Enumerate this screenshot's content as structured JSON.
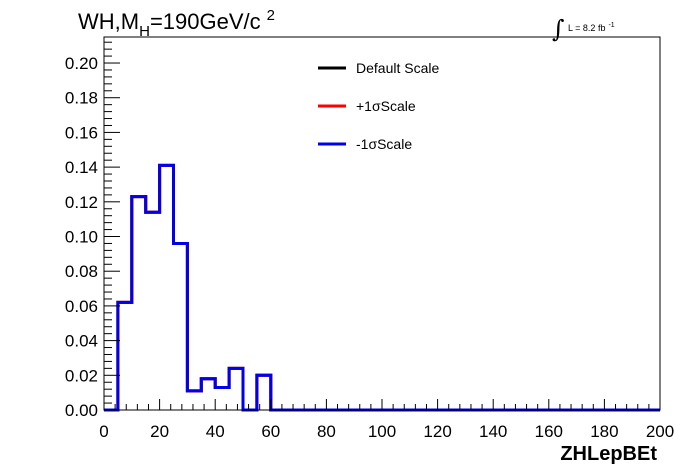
{
  "chart_data": {
    "type": "line",
    "style": "step-histogram",
    "title": {
      "prefix": "WH,M",
      "subscript": "H",
      "value": "=190GeV/c",
      "superscript": "2"
    },
    "luminosity": {
      "label": "L = 8.2 fb",
      "superscript": "-1"
    },
    "xlabel": "ZHLepBEt",
    "ylabel": "",
    "xlim": [
      0,
      200
    ],
    "ylim": [
      0,
      0.215
    ],
    "xticks": [
      0,
      20,
      40,
      60,
      80,
      100,
      120,
      140,
      160,
      180,
      200
    ],
    "yticks": [
      0.0,
      0.02,
      0.04,
      0.06,
      0.08,
      0.1,
      0.12,
      0.14,
      0.16,
      0.18,
      0.2
    ],
    "grid": false,
    "legend_position": "top-center",
    "bin_width": 5,
    "bin_edges": [
      0,
      5,
      10,
      15,
      20,
      25,
      30,
      35,
      40,
      45,
      50,
      55,
      60,
      65,
      70,
      75,
      80,
      85,
      90,
      95,
      100,
      105,
      110,
      115,
      120,
      125,
      130,
      135,
      140,
      145,
      150,
      155,
      160,
      165,
      170,
      175,
      180,
      185,
      190,
      195,
      200
    ],
    "series": [
      {
        "name": "Default Scale",
        "color": "#000000",
        "values": [
          0,
          0.062,
          0.123,
          0.114,
          0.141,
          0.096,
          0.011,
          0.018,
          0.013,
          0.024,
          0,
          0.02,
          0,
          0,
          0,
          0,
          0,
          0,
          0,
          0,
          0,
          0,
          0,
          0,
          0,
          0,
          0,
          0,
          0,
          0,
          0,
          0,
          0,
          0,
          0,
          0,
          0,
          0,
          0,
          0
        ]
      },
      {
        "name": "+1σScale",
        "color": "#ff0000",
        "values": [
          0,
          0.062,
          0.123,
          0.114,
          0.141,
          0.096,
          0.011,
          0.018,
          0.013,
          0.024,
          0,
          0.02,
          0,
          0,
          0,
          0,
          0,
          0,
          0,
          0,
          0,
          0,
          0,
          0,
          0,
          0,
          0,
          0,
          0,
          0,
          0,
          0,
          0,
          0,
          0,
          0,
          0,
          0,
          0,
          0
        ]
      },
      {
        "name": "-1σScale",
        "color": "#0000ee",
        "values": [
          0,
          0.062,
          0.123,
          0.114,
          0.141,
          0.096,
          0.011,
          0.018,
          0.013,
          0.024,
          0,
          0.02,
          0,
          0,
          0,
          0,
          0,
          0,
          0,
          0,
          0,
          0,
          0,
          0,
          0,
          0,
          0,
          0,
          0,
          0,
          0,
          0,
          0,
          0,
          0,
          0,
          0,
          0,
          0,
          0
        ]
      }
    ]
  }
}
